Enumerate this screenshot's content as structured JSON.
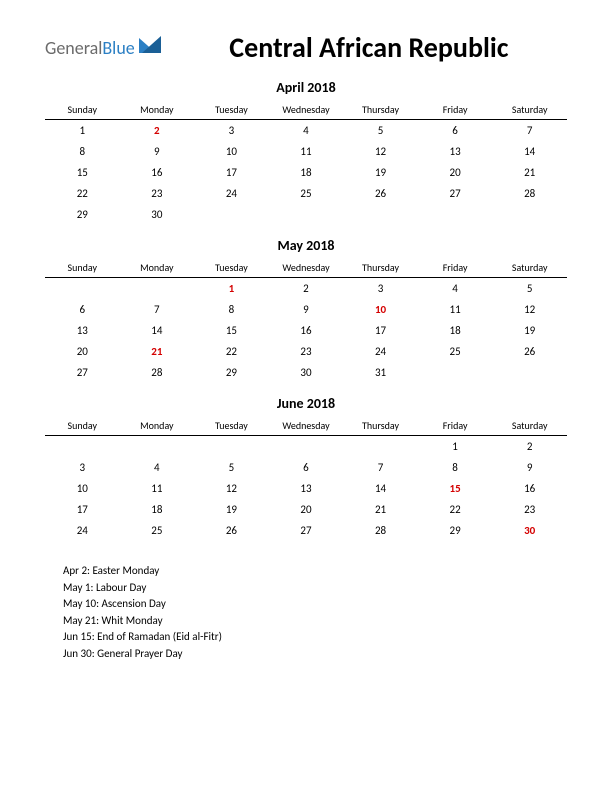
{
  "logo": {
    "part1": "General",
    "part2": "Blue"
  },
  "title": "Central African Republic",
  "weekday_headers": [
    "Sunday",
    "Monday",
    "Tuesday",
    "Wednesday",
    "Thursday",
    "Friday",
    "Saturday"
  ],
  "colors": {
    "holiday_text": "#d40000",
    "logo_gray": "#6b6b6b",
    "logo_blue": "#2b7fc4",
    "logo_triangle": "#2b7fc4",
    "text": "#000000",
    "background": "#ffffff",
    "header_border": "#000000"
  },
  "fonts": {
    "title_size": 28,
    "month_title_size": 14,
    "header_size": 10,
    "cell_size": 11,
    "holiday_list_size": 11
  },
  "months": [
    {
      "title": "April 2018",
      "weeks": [
        [
          {
            "d": 1
          },
          {
            "d": 2,
            "holiday": true
          },
          {
            "d": 3
          },
          {
            "d": 4
          },
          {
            "d": 5
          },
          {
            "d": 6
          },
          {
            "d": 7
          }
        ],
        [
          {
            "d": 8
          },
          {
            "d": 9
          },
          {
            "d": 10
          },
          {
            "d": 11
          },
          {
            "d": 12
          },
          {
            "d": 13
          },
          {
            "d": 14
          }
        ],
        [
          {
            "d": 15
          },
          {
            "d": 16
          },
          {
            "d": 17
          },
          {
            "d": 18
          },
          {
            "d": 19
          },
          {
            "d": 20
          },
          {
            "d": 21
          }
        ],
        [
          {
            "d": 22
          },
          {
            "d": 23
          },
          {
            "d": 24
          },
          {
            "d": 25
          },
          {
            "d": 26
          },
          {
            "d": 27
          },
          {
            "d": 28
          }
        ],
        [
          {
            "d": 29
          },
          {
            "d": 30
          },
          {
            "d": ""
          },
          {
            "d": ""
          },
          {
            "d": ""
          },
          {
            "d": ""
          },
          {
            "d": ""
          }
        ]
      ]
    },
    {
      "title": "May 2018",
      "weeks": [
        [
          {
            "d": ""
          },
          {
            "d": ""
          },
          {
            "d": 1,
            "holiday": true
          },
          {
            "d": 2
          },
          {
            "d": 3
          },
          {
            "d": 4
          },
          {
            "d": 5
          }
        ],
        [
          {
            "d": 6
          },
          {
            "d": 7
          },
          {
            "d": 8
          },
          {
            "d": 9
          },
          {
            "d": 10,
            "holiday": true
          },
          {
            "d": 11
          },
          {
            "d": 12
          }
        ],
        [
          {
            "d": 13
          },
          {
            "d": 14
          },
          {
            "d": 15
          },
          {
            "d": 16
          },
          {
            "d": 17
          },
          {
            "d": 18
          },
          {
            "d": 19
          }
        ],
        [
          {
            "d": 20
          },
          {
            "d": 21,
            "holiday": true
          },
          {
            "d": 22
          },
          {
            "d": 23
          },
          {
            "d": 24
          },
          {
            "d": 25
          },
          {
            "d": 26
          }
        ],
        [
          {
            "d": 27
          },
          {
            "d": 28
          },
          {
            "d": 29
          },
          {
            "d": 30
          },
          {
            "d": 31
          },
          {
            "d": ""
          },
          {
            "d": ""
          }
        ]
      ]
    },
    {
      "title": "June 2018",
      "weeks": [
        [
          {
            "d": ""
          },
          {
            "d": ""
          },
          {
            "d": ""
          },
          {
            "d": ""
          },
          {
            "d": ""
          },
          {
            "d": 1
          },
          {
            "d": 2
          }
        ],
        [
          {
            "d": 3
          },
          {
            "d": 4
          },
          {
            "d": 5
          },
          {
            "d": 6
          },
          {
            "d": 7
          },
          {
            "d": 8
          },
          {
            "d": 9
          }
        ],
        [
          {
            "d": 10
          },
          {
            "d": 11
          },
          {
            "d": 12
          },
          {
            "d": 13
          },
          {
            "d": 14
          },
          {
            "d": 15,
            "holiday": true
          },
          {
            "d": 16
          }
        ],
        [
          {
            "d": 17
          },
          {
            "d": 18
          },
          {
            "d": 19
          },
          {
            "d": 20
          },
          {
            "d": 21
          },
          {
            "d": 22
          },
          {
            "d": 23
          }
        ],
        [
          {
            "d": 24
          },
          {
            "d": 25
          },
          {
            "d": 26
          },
          {
            "d": 27
          },
          {
            "d": 28
          },
          {
            "d": 29
          },
          {
            "d": 30,
            "holiday": true
          }
        ]
      ]
    }
  ],
  "holiday_list": [
    "Apr 2: Easter Monday",
    "May 1: Labour Day",
    "May 10: Ascension Day",
    "May 21: Whit Monday",
    "Jun 15: End of Ramadan (Eid al-Fitr)",
    "Jun 30: General Prayer Day"
  ]
}
